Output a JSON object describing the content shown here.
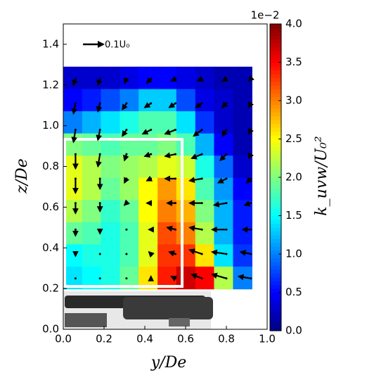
{
  "chart_data": {
    "type": "contour-quiver",
    "xlabel": "y/De",
    "ylabel": "z/De",
    "colorbar_label": "k_uvw/U₀²",
    "colorbar_offset": "1e−2",
    "reference_vector": {
      "value": 0.1,
      "label": "0.1U₀"
    },
    "xlim": [
      0,
      1
    ],
    "ylim": [
      0,
      1.5
    ],
    "xticks": [
      {
        "value": 0,
        "label": "0.0"
      },
      0.2,
      0.4,
      0.6,
      0.8,
      {
        "value": 1,
        "label": "1.0"
      }
    ],
    "yticks": [
      {
        "value": 0,
        "label": "0.0"
      },
      0.2,
      0.4,
      0.6,
      0.8,
      {
        "value": 1,
        "label": "1.0"
      },
      1.2,
      1.4
    ],
    "clim": [
      0,
      4
    ],
    "cticks": [
      {
        "value": 0,
        "label": "0.0"
      },
      0.5,
      {
        "value": 1,
        "label": "1.0"
      },
      1.5,
      {
        "value": 2,
        "label": "2.0"
      },
      2.5,
      {
        "value": 3,
        "label": "3.0"
      },
      3.5,
      {
        "value": 4,
        "label": "4.0"
      }
    ],
    "colormap": "jet",
    "field": {
      "x": [
        0.046,
        0.139,
        0.231,
        0.324,
        0.416,
        0.509,
        0.601,
        0.694,
        0.786,
        0.879
      ],
      "z": [
        1.235,
        1.125,
        1.016,
        0.907,
        0.798,
        0.689,
        0.58,
        0.471,
        0.362,
        0.253
      ],
      "values": [
        [
          0.3,
          0.3,
          0.3,
          0.4,
          0.5,
          0.5,
          0.4,
          0.3,
          0.2,
          0.2
        ],
        [
          0.5,
          0.6,
          0.8,
          1.0,
          1.3,
          1.3,
          0.8,
          0.4,
          0.3,
          0.2
        ],
        [
          1.0,
          1.2,
          1.4,
          1.6,
          1.8,
          1.8,
          1.4,
          0.7,
          0.3,
          0.2
        ],
        [
          2.0,
          1.9,
          1.8,
          1.9,
          1.9,
          2.0,
          1.8,
          1.2,
          0.5,
          0.2
        ],
        [
          2.4,
          2.2,
          2.0,
          2.1,
          2.2,
          2.4,
          2.3,
          1.6,
          0.9,
          0.3
        ],
        [
          2.4,
          2.2,
          1.9,
          2.1,
          2.5,
          2.9,
          2.6,
          1.8,
          1.1,
          0.5
        ],
        [
          2.2,
          2.0,
          1.7,
          1.9,
          2.5,
          3.0,
          2.8,
          2.0,
          1.2,
          0.6
        ],
        [
          1.9,
          1.8,
          1.6,
          1.8,
          2.4,
          3.2,
          3.0,
          2.2,
          1.2,
          0.6
        ],
        [
          1.5,
          1.6,
          1.6,
          1.8,
          2.4,
          3.3,
          3.3,
          2.6,
          1.4,
          0.7
        ],
        [
          1.4,
          1.5,
          1.6,
          1.9,
          2.6,
          3.4,
          3.7,
          3.5,
          2.2,
          1.0
        ]
      ]
    },
    "vectors": {
      "x": [
        0.06,
        0.18,
        0.31,
        0.43,
        0.55,
        0.68,
        0.8,
        0.92
      ],
      "z": [
        1.23,
        1.11,
        0.98,
        0.86,
        0.74,
        0.62,
        0.49,
        0.37,
        0.25
      ],
      "u": [
        [
          -0.01,
          -0.01,
          -0.01,
          -0.02,
          -0.02,
          -0.02,
          -0.02,
          -0.01
        ],
        [
          -0.01,
          -0.01,
          -0.02,
          -0.03,
          -0.03,
          -0.03,
          -0.02,
          -0.01
        ],
        [
          -0.01,
          -0.01,
          -0.02,
          -0.04,
          -0.05,
          -0.04,
          -0.02,
          -0.01
        ],
        [
          0,
          -0.01,
          -0.01,
          -0.03,
          -0.05,
          -0.05,
          -0.03,
          -0.01
        ],
        [
          0,
          0,
          -0.01,
          -0.02,
          -0.05,
          -0.06,
          -0.04,
          -0.02
        ],
        [
          0,
          0,
          -0.01,
          -0.02,
          -0.04,
          -0.06,
          -0.06,
          -0.03
        ],
        [
          0,
          0,
          0,
          -0.01,
          -0.04,
          -0.06,
          -0.07,
          -0.04
        ],
        [
          0,
          0,
          0,
          -0.01,
          -0.03,
          -0.06,
          -0.07,
          -0.05
        ],
        [
          0,
          0,
          0,
          0,
          -0.02,
          -0.05,
          -0.07,
          -0.06
        ]
      ],
      "w": [
        [
          -0.03,
          -0.03,
          -0.02,
          -0.02,
          -0.01,
          -0.01,
          -0.01,
          -0.01
        ],
        [
          -0.05,
          -0.04,
          -0.03,
          -0.02,
          -0.02,
          -0.02,
          -0.02,
          -0.02
        ],
        [
          -0.06,
          -0.05,
          -0.03,
          -0.02,
          -0.02,
          -0.03,
          -0.03,
          -0.02
        ],
        [
          -0.07,
          -0.06,
          -0.03,
          -0.01,
          -0.01,
          -0.02,
          -0.03,
          -0.02
        ],
        [
          -0.07,
          -0.05,
          -0.02,
          -0.01,
          0,
          -0.01,
          -0.02,
          -0.02
        ],
        [
          -0.05,
          -0.04,
          -0.01,
          0,
          0,
          0,
          -0.01,
          -0.01
        ],
        [
          -0.03,
          -0.02,
          0,
          0,
          0.01,
          0.01,
          0,
          0
        ],
        [
          -0.01,
          0,
          0,
          0.01,
          0.01,
          0.02,
          0.01,
          0.01
        ],
        [
          0,
          0,
          0,
          0.01,
          0.01,
          0.02,
          0.02,
          0.01
        ]
      ]
    }
  }
}
